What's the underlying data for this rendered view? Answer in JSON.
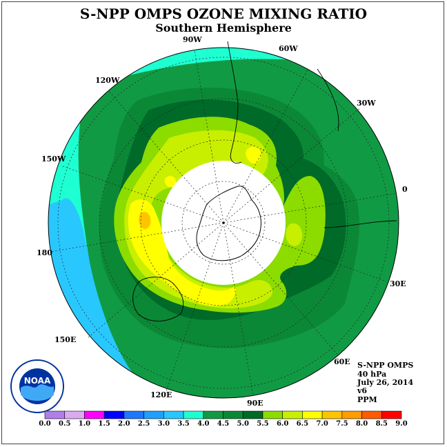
{
  "title": "S-NPP OMPS OZONE MIXING RATIO",
  "subtitle": "Southern Hemisphere",
  "longitude_labels": {
    "w90": "90W",
    "w60": "60W",
    "w120": "120W",
    "w30": "30W",
    "w150": "150W",
    "e0": "0",
    "e180": "180",
    "e30": "30E",
    "e150": "150E",
    "e60": "60E",
    "e120": "120E",
    "e90": "90E"
  },
  "info": {
    "instrument": "S-NPP OMPS",
    "level": "40 hPa",
    "date": "July 26, 2014",
    "version": "v6",
    "units": "PPM"
  },
  "colorbar": {
    "ticks": [
      "0.0",
      "0.5",
      "1.0",
      "1.5",
      "2.0",
      "2.5",
      "3.0",
      "3.5",
      "4.0",
      "4.5",
      "5.0",
      "5.5",
      "6.0",
      "6.5",
      "7.0",
      "7.5",
      "8.0",
      "8.5",
      "9.0"
    ],
    "colors": [
      "#b07fe8",
      "#dcaaf2",
      "#ff00ff",
      "#0000ff",
      "#1e78ff",
      "#1ea0ff",
      "#28c8ff",
      "#1effd2",
      "#119a44",
      "#0b8836",
      "#006a28",
      "#8cdc00",
      "#c8ef00",
      "#ffff00",
      "#ffc400",
      "#ff9c00",
      "#ff5a00",
      "#ff0000",
      "#8b5a3c"
    ]
  },
  "logo": {
    "text": "NOAA",
    "color": "#0033a0"
  }
}
